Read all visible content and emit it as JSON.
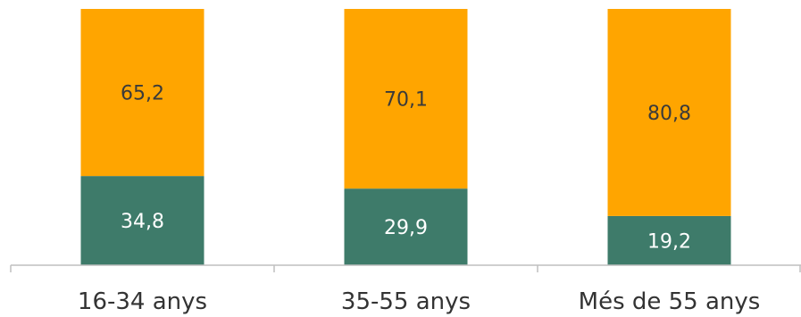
{
  "chart_data": {
    "type": "bar",
    "stacked": true,
    "percent_stacked": true,
    "categories": [
      "16-34 anys",
      "35-55 anys",
      "Més de 55 anys"
    ],
    "series": [
      {
        "values": [
          34.8,
          29.9,
          19.2
        ],
        "labels": [
          "34,8",
          "29,9",
          "19,2"
        ],
        "color": "#3e7b6a",
        "label_color": "#ffffff"
      },
      {
        "values": [
          65.2,
          70.1,
          80.8
        ],
        "labels": [
          "65,2",
          "70,1",
          "80,8"
        ],
        "color": "#ffa500",
        "label_color": "#3a3a3a"
      }
    ],
    "ylim": [
      0,
      100
    ],
    "grid": false,
    "legend": "none"
  }
}
